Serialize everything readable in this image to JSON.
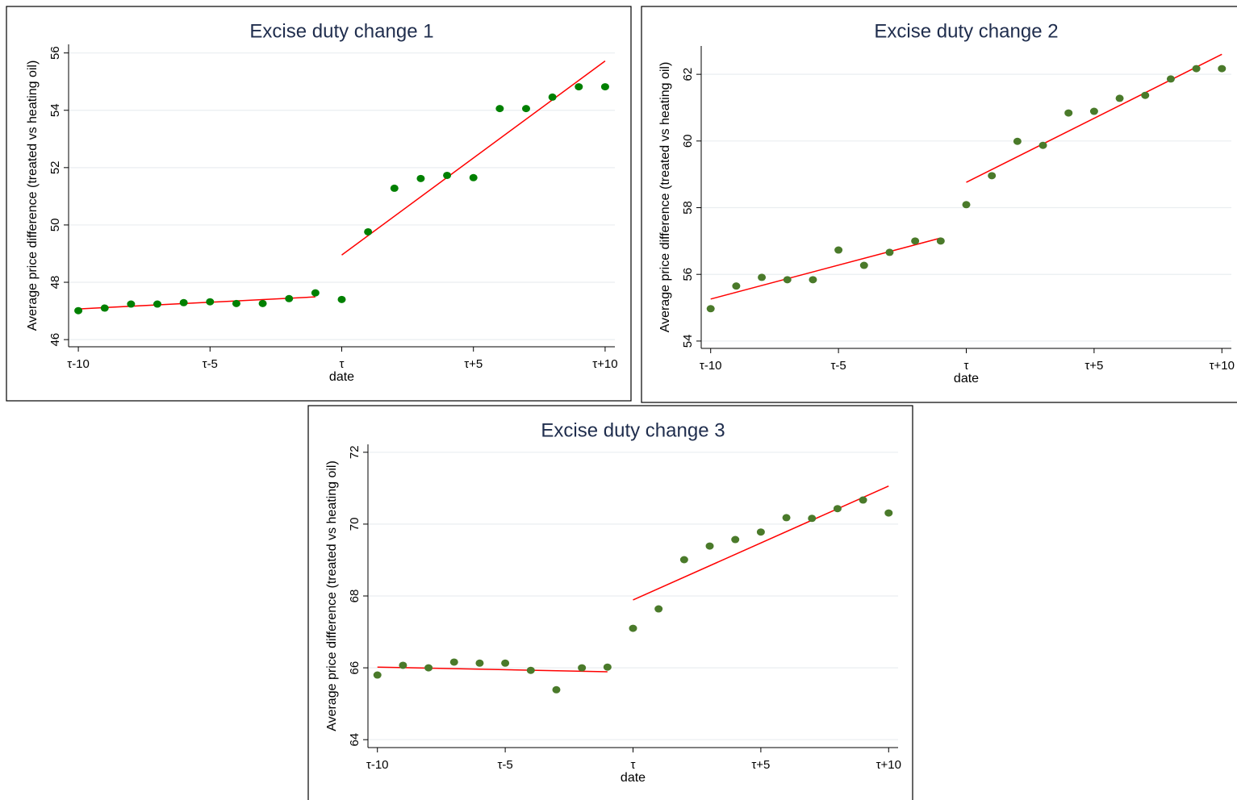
{
  "chart_data": [
    {
      "type": "scatter",
      "title": "Excise duty change 1",
      "x_label": "date",
      "y_label": "Average price difference (treated vs heating oil)",
      "x": [
        -10,
        -9,
        -8,
        -7,
        -6,
        -5,
        -4,
        -3,
        -2,
        -1,
        0,
        1,
        2,
        3,
        4,
        5,
        6,
        7,
        8,
        9,
        10
      ],
      "values": [
        47.01,
        47.1,
        47.24,
        47.24,
        47.29,
        47.32,
        47.26,
        47.26,
        47.43,
        47.63,
        47.4,
        49.76,
        51.28,
        51.62,
        51.73,
        51.65,
        54.06,
        54.06,
        54.46,
        54.82,
        54.82
      ],
      "color": "#008000",
      "fits": [
        {
          "x": [
            -10,
            -1
          ],
          "values": [
            47.07,
            47.49
          ],
          "color": "#ff0000"
        },
        {
          "x": [
            0,
            10
          ],
          "values": [
            48.95,
            55.72
          ],
          "color": "#ff0000"
        }
      ],
      "xlim": [
        -10.37,
        10.37
      ],
      "ylim": [
        45.75,
        56.3
      ],
      "xticks": [
        {
          "value": -10,
          "label": "τ-10"
        },
        {
          "value": -5,
          "label": "τ-5"
        },
        {
          "value": 0,
          "label": "τ"
        },
        {
          "value": 5,
          "label": "τ+5"
        },
        {
          "value": 10,
          "label": "τ+10"
        }
      ],
      "yticks": [
        46,
        48,
        50,
        52,
        54,
        56
      ],
      "grid": true
    },
    {
      "type": "scatter",
      "title": "Excise duty change 2",
      "x_label": "date",
      "y_label": "Average price difference (treated vs heating oil)",
      "x": [
        -10,
        -9,
        -8,
        -7,
        -6,
        -5,
        -4,
        -3,
        -2,
        -1,
        0,
        1,
        2,
        3,
        4,
        5,
        6,
        7,
        8,
        9,
        10
      ],
      "values": [
        54.97,
        55.65,
        55.91,
        55.84,
        55.84,
        56.73,
        56.27,
        56.66,
        57.0,
        57.0,
        58.09,
        58.96,
        59.99,
        59.87,
        60.84,
        60.89,
        61.28,
        61.37,
        61.86,
        62.17,
        62.17
      ],
      "color": "#4a7a2a",
      "fits": [
        {
          "x": [
            -10,
            -1
          ],
          "values": [
            55.26,
            57.09
          ],
          "color": "#ff0000"
        },
        {
          "x": [
            0,
            10
          ],
          "values": [
            58.76,
            62.6
          ],
          "color": "#ff0000"
        }
      ],
      "xlim": [
        -10.37,
        10.37
      ],
      "ylim": [
        53.78,
        62.85
      ],
      "xticks": [
        {
          "value": -10,
          "label": "τ-10"
        },
        {
          "value": -5,
          "label": "τ-5"
        },
        {
          "value": 0,
          "label": "τ"
        },
        {
          "value": 5,
          "label": "τ+5"
        },
        {
          "value": 10,
          "label": "τ+10"
        }
      ],
      "yticks": [
        54,
        56,
        58,
        60,
        62
      ],
      "grid": true
    },
    {
      "type": "scatter",
      "title": "Excise duty change 3",
      "x_label": "date",
      "y_label": "Average price difference (treated vs heating oil)",
      "x": [
        -10,
        -9,
        -8,
        -7,
        -6,
        -5,
        -4,
        -3,
        -2,
        -1,
        0,
        1,
        2,
        3,
        4,
        5,
        6,
        7,
        8,
        9,
        10
      ],
      "values": [
        65.8,
        66.07,
        66.0,
        66.16,
        66.13,
        66.13,
        65.93,
        65.39,
        66.0,
        66.02,
        67.1,
        67.64,
        69.01,
        69.39,
        69.57,
        69.78,
        70.18,
        70.16,
        70.43,
        70.67,
        70.31
      ],
      "color": "#4a7a2a",
      "fits": [
        {
          "x": [
            -10,
            -1
          ],
          "values": [
            66.02,
            65.89
          ],
          "color": "#ff0000"
        },
        {
          "x": [
            0,
            10
          ],
          "values": [
            67.89,
            71.06
          ],
          "color": "#ff0000"
        }
      ],
      "xlim": [
        -10.37,
        10.37
      ],
      "ylim": [
        63.78,
        72.22
      ],
      "xticks": [
        {
          "value": -10,
          "label": "τ-10"
        },
        {
          "value": -5,
          "label": "τ-5"
        },
        {
          "value": 0,
          "label": "τ"
        },
        {
          "value": 5,
          "label": "τ+5"
        },
        {
          "value": 10,
          "label": "τ+10"
        }
      ],
      "yticks": [
        64,
        66,
        68,
        70,
        72
      ],
      "grid": true
    }
  ]
}
